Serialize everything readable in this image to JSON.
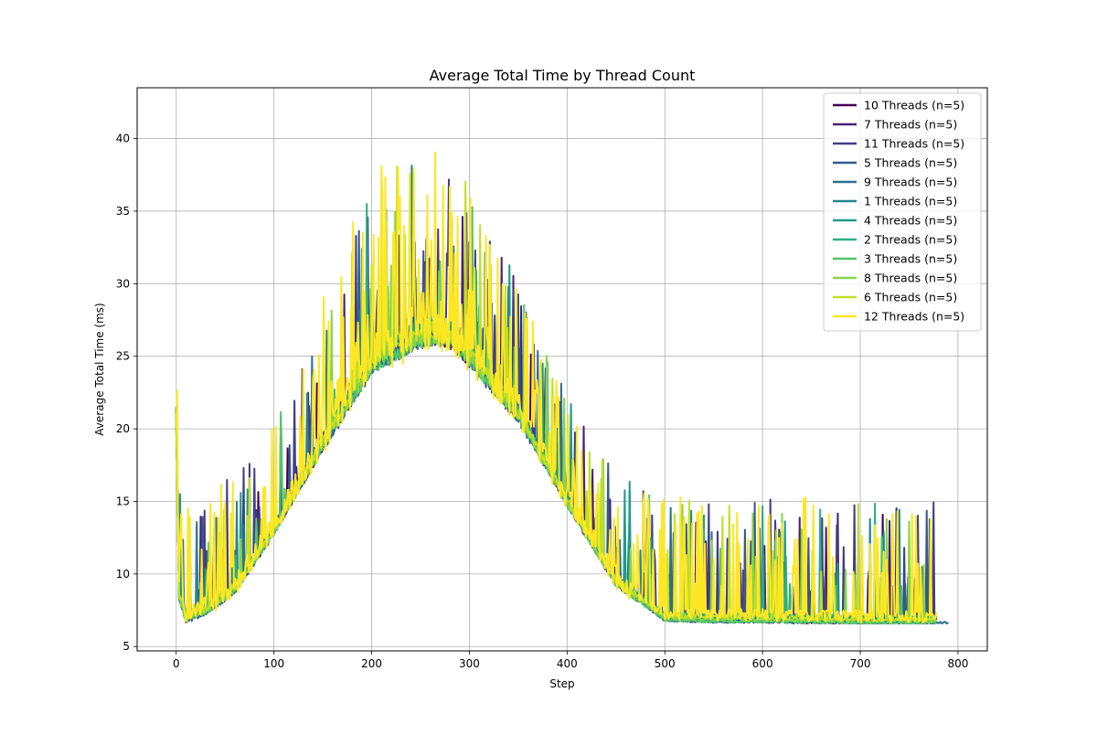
{
  "chart_data": {
    "type": "line",
    "title": "Average Total Time by Thread Count",
    "xlabel": "Step",
    "ylabel": "Average Total Time (ms)",
    "xlim": [
      -40,
      830
    ],
    "ylim": [
      4.7,
      43.5
    ],
    "xticks": [
      0,
      100,
      200,
      300,
      400,
      500,
      600,
      700,
      800
    ],
    "yticks": [
      5,
      10,
      15,
      20,
      25,
      30,
      35,
      40
    ],
    "grid": true,
    "legend_position": "top-right",
    "series": [
      {
        "name": "10 Threads (n=5)",
        "color": "#440154",
        "last_step": 778,
        "noise": 0.3,
        "spike": 0.02
      },
      {
        "name": "7 Threads (n=5)",
        "color": "#482173",
        "last_step": 778,
        "noise": 0.4,
        "spike": 0.04
      },
      {
        "name": "11 Threads (n=5)",
        "color": "#433e85",
        "last_step": 778,
        "noise": 0.9,
        "spike": 0.14
      },
      {
        "name": "5 Threads (n=5)",
        "color": "#38588c",
        "last_step": 778,
        "noise": 0.3,
        "spike": 0.03
      },
      {
        "name": "9 Threads (n=5)",
        "color": "#2d708e",
        "last_step": 790,
        "noise": 0.3,
        "spike": 0.02
      },
      {
        "name": "1 Threads (n=5)",
        "color": "#25858e",
        "last_step": 778,
        "noise": 0.35,
        "spike": 0.03
      },
      {
        "name": "4 Threads (n=5)",
        "color": "#1e9b8a",
        "last_step": 778,
        "noise": 0.35,
        "spike": 0.03
      },
      {
        "name": "2 Threads (n=5)",
        "color": "#2ab07f",
        "last_step": 778,
        "noise": 0.3,
        "spike": 0.02
      },
      {
        "name": "3 Threads (n=5)",
        "color": "#52c569",
        "last_step": 778,
        "noise": 0.3,
        "spike": 0.03
      },
      {
        "name": "8 Threads (n=5)",
        "color": "#86d549",
        "last_step": 778,
        "noise": 0.4,
        "spike": 0.04
      },
      {
        "name": "6 Threads (n=5)",
        "color": "#c2df23",
        "last_step": 778,
        "noise": 0.5,
        "spike": 0.06
      },
      {
        "name": "12 Threads (n=5)",
        "color": "#fde725",
        "last_step": 778,
        "noise": 1.4,
        "spike": 0.22
      }
    ],
    "baseline_profile": {
      "steps": [
        0,
        3,
        10,
        30,
        60,
        100,
        150,
        200,
        250,
        280,
        300,
        350,
        400,
        450,
        500,
        550,
        600,
        700,
        790
      ],
      "values": [
        20.5,
        8.5,
        7.0,
        7.5,
        9.0,
        13.0,
        19.0,
        24.5,
        26.5,
        26.5,
        25.0,
        21.0,
        15.0,
        9.5,
        7.0,
        6.9,
        6.9,
        6.8,
        6.8
      ]
    }
  }
}
